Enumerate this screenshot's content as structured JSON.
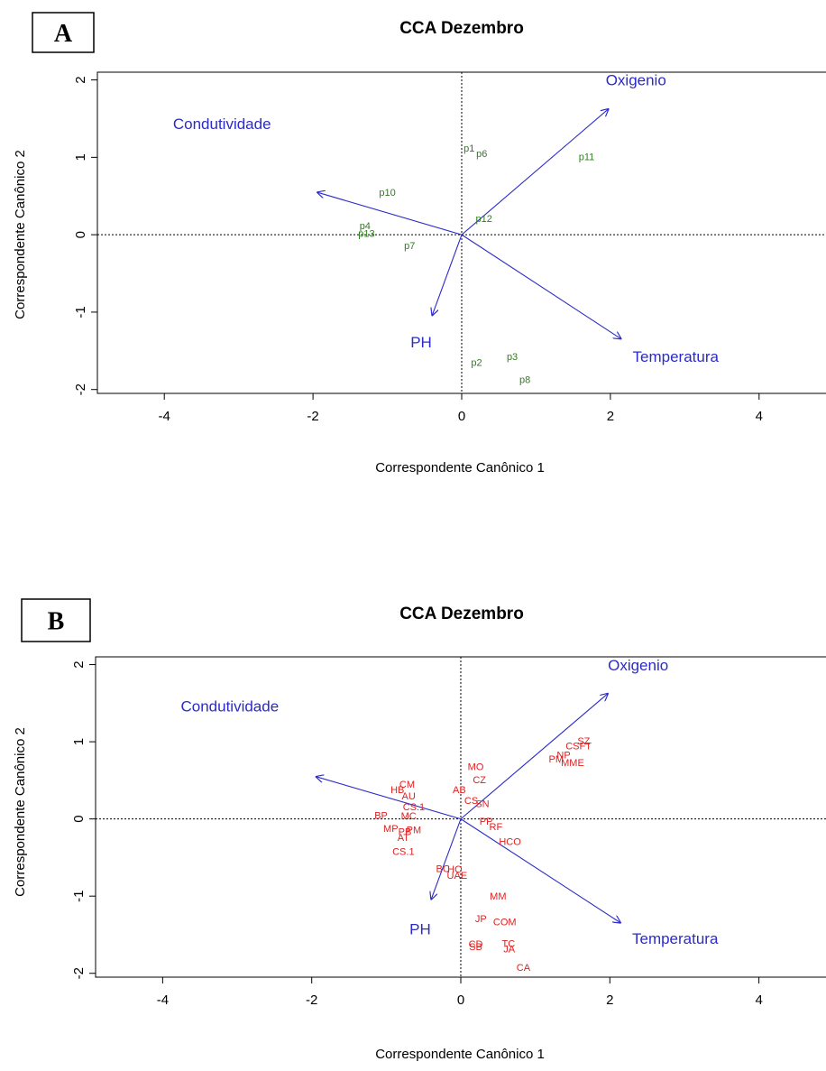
{
  "chart_data": [
    {
      "type": "scatter",
      "panel_label": "A",
      "title": "CCA Dezembro",
      "xlabel": "Correspondente Canônico 1",
      "ylabel": "Correspondente Canônico 2",
      "xlim": [
        -4.9,
        4.9
      ],
      "ylim": [
        -2.05,
        2.1
      ],
      "xticks": [
        -4,
        -2,
        0,
        2,
        4
      ],
      "yticks": [
        -2,
        -1,
        0,
        1,
        2
      ],
      "reference_lines": {
        "x": 0,
        "y": 0,
        "style": "dotted"
      },
      "vectors_color": "#2b2bc8",
      "points_color": "#2e7d1e",
      "vectors": [
        {
          "label": "Oxigenio",
          "x": 1.98,
          "y": 1.63
        },
        {
          "label": "Condutividade",
          "x": -1.95,
          "y": 0.55
        },
        {
          "label": "PH",
          "x": -0.4,
          "y": -1.05
        },
        {
          "label": "Temperatura",
          "x": 2.15,
          "y": -1.35
        }
      ],
      "points": [
        {
          "label": "p1",
          "x": 0.1,
          "y": 1.12
        },
        {
          "label": "p6",
          "x": 0.27,
          "y": 1.05
        },
        {
          "label": "p11",
          "x": 1.68,
          "y": 1.01
        },
        {
          "label": "p10",
          "x": -1.0,
          "y": 0.55
        },
        {
          "label": "p12",
          "x": 0.3,
          "y": 0.21
        },
        {
          "label": "p4",
          "x": -1.3,
          "y": 0.12
        },
        {
          "label": "p13",
          "x": -1.28,
          "y": 0.02
        },
        {
          "label": "p7",
          "x": -0.7,
          "y": -0.14
        },
        {
          "label": "p2",
          "x": 0.2,
          "y": -1.65
        },
        {
          "label": "p3",
          "x": 0.68,
          "y": -1.57
        },
        {
          "label": "p8",
          "x": 0.85,
          "y": -1.87
        }
      ]
    },
    {
      "type": "scatter",
      "panel_label": "B",
      "title": "CCA Dezembro",
      "xlabel": "Correspondente Canônico 1",
      "ylabel": "Correspondente Canônico 2",
      "xlim": [
        -4.9,
        4.9
      ],
      "ylim": [
        -2.05,
        2.1
      ],
      "xticks": [
        -4,
        -2,
        0,
        2,
        4
      ],
      "yticks": [
        -2,
        -1,
        0,
        1,
        2
      ],
      "reference_lines": {
        "x": 0,
        "y": 0,
        "style": "dotted"
      },
      "vectors_color": "#2b2bc8",
      "points_color": "#e02020",
      "vectors": [
        {
          "label": "Oxigenio",
          "x": 1.98,
          "y": 1.63
        },
        {
          "label": "Condutividade",
          "x": -1.95,
          "y": 0.55
        },
        {
          "label": "PH",
          "x": -0.4,
          "y": -1.05
        },
        {
          "label": "Temperatura",
          "x": 2.15,
          "y": -1.35
        }
      ],
      "points": [
        {
          "label": "SZ",
          "x": 1.65,
          "y": 1.01
        },
        {
          "label": "CSFT",
          "x": 1.58,
          "y": 0.95
        },
        {
          "label": "NP",
          "x": 1.38,
          "y": 0.83
        },
        {
          "label": "PM",
          "x": 1.28,
          "y": 0.78
        },
        {
          "label": "MME",
          "x": 1.5,
          "y": 0.73
        },
        {
          "label": "MO",
          "x": 0.2,
          "y": 0.68
        },
        {
          "label": "CZ",
          "x": 0.25,
          "y": 0.51
        },
        {
          "label": "CM",
          "x": -0.72,
          "y": 0.45
        },
        {
          "label": "HB",
          "x": -0.85,
          "y": 0.38
        },
        {
          "label": "AU",
          "x": -0.7,
          "y": 0.3
        },
        {
          "label": "AB",
          "x": -0.02,
          "y": 0.38
        },
        {
          "label": "CS",
          "x": 0.14,
          "y": 0.24
        },
        {
          "label": "SN",
          "x": 0.29,
          "y": 0.2
        },
        {
          "label": "CS.1",
          "x": -0.63,
          "y": 0.16
        },
        {
          "label": "BP",
          "x": -1.07,
          "y": 0.05
        },
        {
          "label": "MC",
          "x": -0.7,
          "y": 0.04
        },
        {
          "label": "PP",
          "x": 0.34,
          "y": -0.03
        },
        {
          "label": "RF",
          "x": 0.47,
          "y": -0.1
        },
        {
          "label": "MP",
          "x": -0.94,
          "y": -0.12
        },
        {
          "label": "PM",
          "x": -0.63,
          "y": -0.14
        },
        {
          "label": "AT",
          "x": -0.77,
          "y": -0.24
        },
        {
          "label": "PB",
          "x": -0.75,
          "y": -0.16
        },
        {
          "label": "HCO",
          "x": 0.66,
          "y": -0.29
        },
        {
          "label": "CS.1",
          "x": -0.77,
          "y": -0.42
        },
        {
          "label": "BC",
          "x": -0.24,
          "y": -0.64
        },
        {
          "label": "HO",
          "x": -0.08,
          "y": -0.65
        },
        {
          "label": "UAE",
          "x": -0.05,
          "y": -0.73
        },
        {
          "label": "MM",
          "x": 0.5,
          "y": -1.0
        },
        {
          "label": "JP",
          "x": 0.27,
          "y": -1.29
        },
        {
          "label": "COM",
          "x": 0.59,
          "y": -1.33
        },
        {
          "label": "TC",
          "x": 0.64,
          "y": -1.61
        },
        {
          "label": "JA",
          "x": 0.65,
          "y": -1.68
        },
        {
          "label": "SB",
          "x": 0.2,
          "y": -1.65
        },
        {
          "label": "CD",
          "x": 0.2,
          "y": -1.62
        },
        {
          "label": "CA",
          "x": 0.84,
          "y": -1.92
        }
      ]
    }
  ]
}
